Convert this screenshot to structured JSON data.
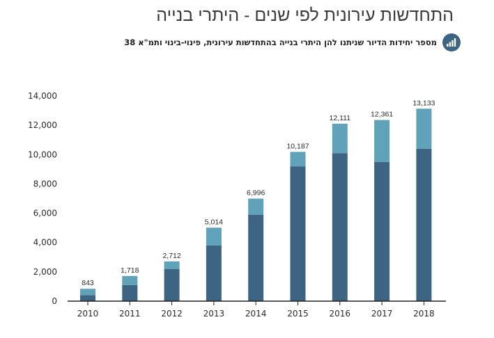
{
  "header": {
    "title": "התחדשות עירונית לפי שנים - היתרי בנייה",
    "subtitle": "מספר יחידות הדיור שניתנו להן היתרי בנייה בהתחדשות עירונית, פינוי-בינוי ותמ\"א 38",
    "subtitle_icon": "bar-chart-icon"
  },
  "colors": {
    "base": "#3d6482",
    "top": "#5fa2b9",
    "axis": "#222222",
    "badge": "#3d6482"
  },
  "chart_data": {
    "type": "bar",
    "stacked": true,
    "categories": [
      "2010",
      "2011",
      "2012",
      "2013",
      "2014",
      "2015",
      "2016",
      "2017",
      "2018"
    ],
    "series": [
      {
        "values": [
          400,
          1100,
          2200,
          3800,
          5900,
          9200,
          10100,
          9500,
          10400
        ]
      },
      {
        "values": [
          443,
          618,
          512,
          1214,
          1096,
          987,
          2011,
          2861,
          2733
        ]
      }
    ],
    "totals": [
      843,
      1718,
      2712,
      5014,
      6996,
      10187,
      12111,
      12361,
      13133
    ],
    "total_labels": [
      "843",
      "1,718",
      "2,712",
      "5,014",
      "6,996",
      "10,187",
      "12,111",
      "12,361",
      "13,133"
    ],
    "y_ticks": [
      0,
      2000,
      4000,
      6000,
      8000,
      10000,
      12000,
      14000
    ],
    "y_tick_labels": [
      "0",
      "2,000",
      "4,000",
      "6,000",
      "8,000",
      "10,000",
      "12,000",
      "14,000"
    ],
    "ylim": [
      0,
      14000
    ],
    "grid": false,
    "xlabel": "",
    "ylabel": ""
  }
}
